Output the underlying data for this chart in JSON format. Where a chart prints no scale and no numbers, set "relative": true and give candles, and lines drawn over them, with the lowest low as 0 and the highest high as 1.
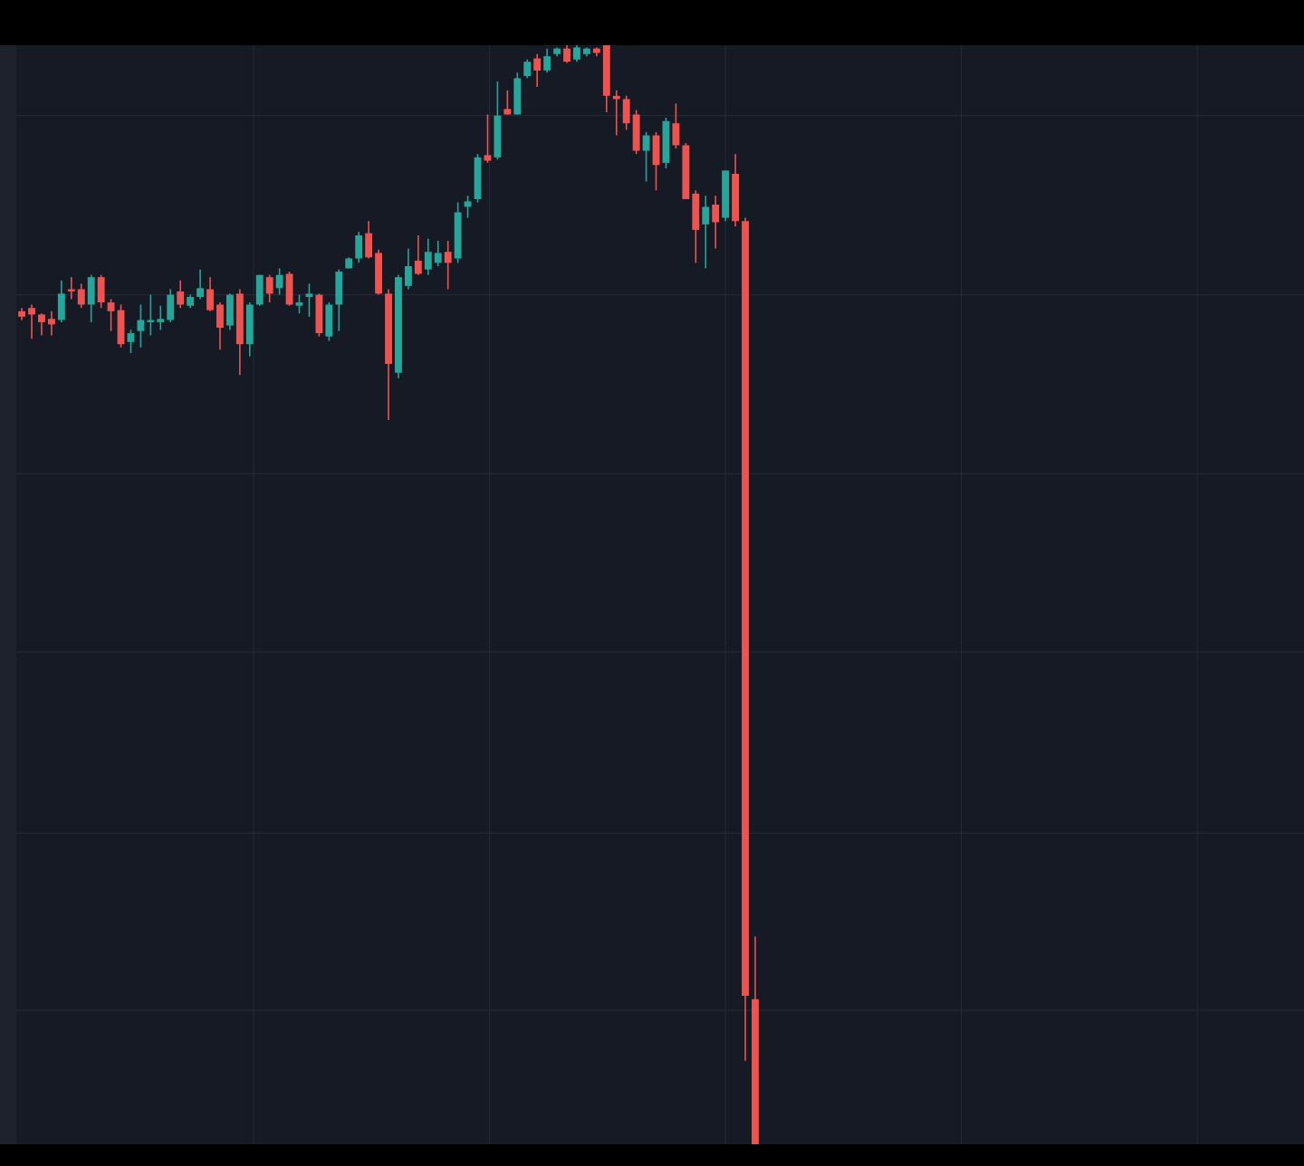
{
  "chart_data": {
    "type": "candlestick",
    "relative": true,
    "grid": true,
    "categories": [
      null,
      null,
      null,
      null,
      null,
      null,
      null,
      null,
      null,
      null,
      null,
      null,
      null,
      null,
      null,
      null,
      null,
      null,
      null,
      null,
      null,
      null,
      null,
      null,
      null,
      null,
      null,
      null,
      null,
      null,
      null,
      null,
      null,
      null,
      null,
      null,
      null,
      null,
      null,
      null,
      null,
      null,
      null,
      null,
      null,
      null,
      null,
      null,
      null,
      null,
      null,
      null,
      null,
      null,
      null,
      null,
      null,
      null,
      null,
      null,
      null,
      null,
      null,
      null,
      null,
      null,
      null,
      null,
      null,
      null,
      null,
      null,
      null,
      null,
      null
    ],
    "ohlc": [
      [
        0.758,
        0.761,
        0.75,
        0.753
      ],
      [
        0.761,
        0.764,
        0.733,
        0.755
      ],
      [
        0.755,
        0.756,
        0.736,
        0.748
      ],
      [
        0.751,
        0.758,
        0.736,
        0.746
      ],
      [
        0.75,
        0.786,
        0.748,
        0.774
      ],
      [
        0.778,
        0.789,
        0.769,
        0.776
      ],
      [
        0.778,
        0.783,
        0.761,
        0.764
      ],
      [
        0.764,
        0.791,
        0.748,
        0.789
      ],
      [
        0.789,
        0.791,
        0.761,
        0.766
      ],
      [
        0.766,
        0.769,
        0.74,
        0.758
      ],
      [
        0.759,
        0.764,
        0.725,
        0.728
      ],
      [
        0.73,
        0.741,
        0.72,
        0.738
      ],
      [
        0.74,
        0.764,
        0.725,
        0.75
      ],
      [
        0.748,
        0.773,
        0.736,
        0.75
      ],
      [
        0.748,
        0.763,
        0.741,
        0.751
      ],
      [
        0.75,
        0.778,
        0.748,
        0.773
      ],
      [
        0.776,
        0.786,
        0.761,
        0.764
      ],
      [
        0.763,
        0.773,
        0.761,
        0.771
      ],
      [
        0.771,
        0.796,
        0.769,
        0.779
      ],
      [
        0.778,
        0.789,
        0.758,
        0.759
      ],
      [
        0.764,
        0.766,
        0.723,
        0.743
      ],
      [
        0.745,
        0.774,
        0.741,
        0.773
      ],
      [
        0.774,
        0.778,
        0.7,
        0.728
      ],
      [
        0.728,
        0.766,
        0.717,
        0.764
      ],
      [
        0.764,
        0.791,
        0.763,
        0.791
      ],
      [
        0.789,
        0.791,
        0.766,
        0.774
      ],
      [
        0.779,
        0.797,
        0.773,
        0.791
      ],
      [
        0.792,
        0.794,
        0.763,
        0.764
      ],
      [
        0.763,
        0.773,
        0.756,
        0.766
      ],
      [
        0.771,
        0.783,
        0.753,
        0.774
      ],
      [
        0.773,
        0.774,
        0.735,
        0.738
      ],
      [
        0.735,
        0.766,
        0.731,
        0.764
      ],
      [
        0.764,
        0.796,
        0.74,
        0.794
      ],
      [
        0.797,
        0.807,
        0.797,
        0.806
      ],
      [
        0.806,
        0.83,
        0.802,
        0.827
      ],
      [
        0.829,
        0.84,
        0.806,
        0.807
      ],
      [
        0.811,
        0.814,
        0.773,
        0.774
      ],
      [
        0.774,
        0.778,
        0.659,
        0.71
      ],
      [
        0.702,
        0.791,
        0.697,
        0.789
      ],
      [
        0.781,
        0.815,
        0.778,
        0.799
      ],
      [
        0.804,
        0.827,
        0.791,
        0.792
      ],
      [
        0.796,
        0.824,
        0.791,
        0.812
      ],
      [
        0.802,
        0.822,
        0.799,
        0.811
      ],
      [
        0.812,
        0.822,
        0.778,
        0.802
      ],
      [
        0.806,
        0.857,
        0.802,
        0.848
      ],
      [
        0.853,
        0.863,
        0.843,
        0.858
      ],
      [
        0.86,
        0.901,
        0.857,
        0.898
      ],
      [
        0.9,
        0.937,
        0.893,
        0.895
      ],
      [
        0.898,
        0.967,
        0.896,
        0.936
      ],
      [
        0.942,
        0.959,
        0.937,
        0.937
      ],
      [
        0.937,
        0.975,
        0.937,
        0.97
      ],
      [
        0.972,
        0.987,
        0.97,
        0.985
      ],
      [
        0.988,
        0.992,
        0.962,
        0.977
      ],
      [
        0.977,
        0.997,
        0.975,
        0.99
      ],
      [
        0.992,
        0.998,
        0.99,
        0.997
      ],
      [
        0.997,
        1.0,
        0.984,
        0.985
      ],
      [
        0.987,
        1.0,
        0.985,
        0.998
      ],
      [
        0.992,
        0.998,
        0.99,
        0.997
      ],
      [
        0.997,
        0.998,
        0.99,
        0.993
      ],
      [
        1.0,
        1.0,
        0.939,
        0.954
      ],
      [
        0.954,
        0.959,
        0.918,
        0.951
      ],
      [
        0.951,
        0.954,
        0.923,
        0.929
      ],
      [
        0.937,
        0.941,
        0.901,
        0.904
      ],
      [
        0.904,
        0.921,
        0.876,
        0.918
      ],
      [
        0.918,
        0.921,
        0.868,
        0.891
      ],
      [
        0.893,
        0.934,
        0.888,
        0.931
      ],
      [
        0.929,
        0.947,
        0.906,
        0.909
      ],
      [
        0.909,
        0.911,
        0.86,
        0.86
      ],
      [
        0.865,
        0.868,
        0.802,
        0.832
      ],
      [
        0.837,
        0.863,
        0.797,
        0.853
      ],
      [
        0.855,
        0.863,
        0.815,
        0.839
      ],
      [
        0.843,
        0.886,
        0.84,
        0.886
      ],
      [
        0.883,
        0.901,
        0.835,
        0.84
      ],
      [
        0.84,
        0.843,
        0.076,
        0.135
      ],
      [
        0.132,
        0.189,
        0,
        0
      ]
    ],
    "colors": [
      "#ef5350",
      "#ef5350",
      "#ef5350",
      "#ef5350",
      "#26a69a",
      "#ef5350",
      "#ef5350",
      "#26a69a",
      "#ef5350",
      "#ef5350",
      "#ef5350",
      "#26a69a",
      "#26a69a",
      "#26a69a",
      "#26a69a",
      "#26a69a",
      "#ef5350",
      "#26a69a",
      "#26a69a",
      "#ef5350",
      "#ef5350",
      "#26a69a",
      "#ef5350",
      "#26a69a",
      "#26a69a",
      "#ef5350",
      "#26a69a",
      "#ef5350",
      "#26a69a",
      "#26a69a",
      "#ef5350",
      "#26a69a",
      "#26a69a",
      "#26a69a",
      "#26a69a",
      "#ef5350",
      "#ef5350",
      "#ef5350",
      "#26a69a",
      "#26a69a",
      "#ef5350",
      "#26a69a",
      "#26a69a",
      "#ef5350",
      "#26a69a",
      "#26a69a",
      "#26a69a",
      "#ef5350",
      "#26a69a",
      "#ef5350",
      "#26a69a",
      "#26a69a",
      "#ef5350",
      "#26a69a",
      "#26a69a",
      "#ef5350",
      "#26a69a",
      "#26a69a",
      "#ef5350",
      "#ef5350",
      "#ef5350",
      "#ef5350",
      "#ef5350",
      "#26a69a",
      "#ef5350",
      "#26a69a",
      "#ef5350",
      "#ef5350",
      "#ef5350",
      "#26a69a",
      "#ef5350",
      "#26a69a",
      "#ef5350",
      "#ef5350",
      "#ef5350"
    ]
  }
}
